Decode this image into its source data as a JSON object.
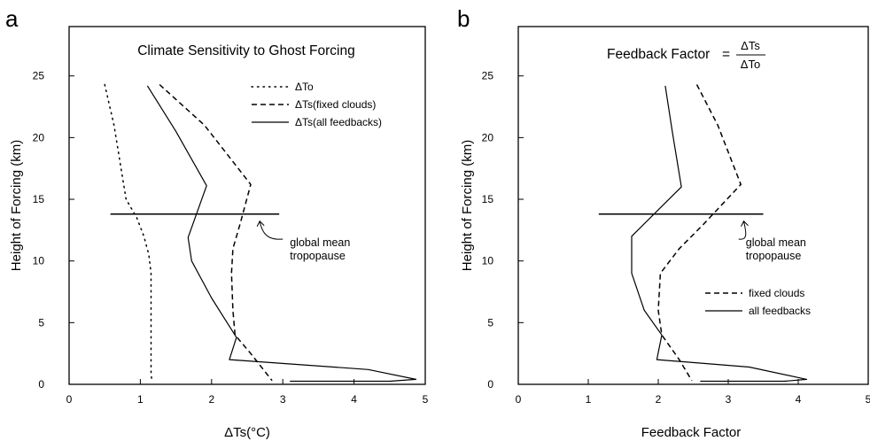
{
  "chart_data": [
    {
      "panel_label": "a",
      "type": "line",
      "title": "Climate Sensitivity to Ghost Forcing",
      "xlabel": "ΔTs(°C)",
      "ylabel": "Height of Forcing (km)",
      "xlim": [
        0,
        5
      ],
      "ylim": [
        0,
        29
      ],
      "xticks": [
        0,
        1,
        2,
        3,
        4,
        5
      ],
      "yticks": [
        0,
        5,
        10,
        15,
        20,
        25
      ],
      "grid": false,
      "legend_position": "top-right",
      "series": [
        {
          "name": "ΔTo",
          "style": "dotted",
          "points": [
            [
              0.5,
              24.3
            ],
            [
              0.63,
              21.0
            ],
            [
              0.8,
              15.0
            ],
            [
              0.95,
              13.5
            ],
            [
              1.05,
              12.0
            ],
            [
              1.12,
              10.5
            ],
            [
              1.15,
              9.0
            ],
            [
              1.15,
              7.0
            ],
            [
              1.15,
              5.0
            ],
            [
              1.15,
              3.0
            ],
            [
              1.15,
              1.0
            ],
            [
              1.16,
              0.3
            ]
          ]
        },
        {
          "name": "ΔTs(fixed clouds)",
          "style": "dashed",
          "points": [
            [
              1.27,
              24.3
            ],
            [
              1.9,
              21.0
            ],
            [
              2.55,
              16.2
            ],
            [
              2.4,
              13.0
            ],
            [
              2.3,
              11.0
            ],
            [
              2.28,
              9.0
            ],
            [
              2.3,
              6.0
            ],
            [
              2.33,
              4.0
            ],
            [
              2.55,
              2.5
            ],
            [
              2.85,
              0.3
            ]
          ]
        },
        {
          "name": "ΔTs(all feedbacks)",
          "style": "solid",
          "points": [
            [
              1.1,
              24.2
            ],
            [
              1.5,
              20.5
            ],
            [
              1.93,
              16.1
            ],
            [
              1.67,
              11.9
            ],
            [
              1.72,
              10.0
            ],
            [
              2.0,
              7.0
            ],
            [
              2.35,
              3.8
            ],
            [
              2.25,
              2.0
            ],
            [
              4.2,
              1.2
            ],
            [
              4.87,
              0.4
            ],
            [
              4.5,
              0.25
            ],
            [
              3.1,
              0.25
            ]
          ]
        }
      ],
      "annotation": {
        "line1": "global mean",
        "line2": "tropopause",
        "height": 13.8,
        "x_start": 0.58,
        "x_end": 2.95,
        "text_x": 3.1,
        "text_y": 11.2
      }
    },
    {
      "panel_label": "b",
      "type": "line",
      "title_text": "Feedback Factor",
      "title_eq": "=",
      "title_num": "ΔTs",
      "title_den": "ΔTo",
      "xlabel": "Feedback Factor",
      "ylabel": "Height of Forcing (km)",
      "xlim": [
        0,
        5
      ],
      "ylim": [
        0,
        29
      ],
      "xticks": [
        0,
        1,
        2,
        3,
        4,
        5
      ],
      "yticks": [
        0,
        5,
        10,
        15,
        20,
        25
      ],
      "grid": false,
      "legend_position": "middle-right",
      "series": [
        {
          "name": "fixed clouds",
          "style": "dashed",
          "points": [
            [
              2.55,
              24.3
            ],
            [
              2.85,
              21.0
            ],
            [
              3.18,
              16.2
            ],
            [
              2.65,
              13.0
            ],
            [
              2.3,
              11.0
            ],
            [
              2.03,
              9.0
            ],
            [
              2.0,
              6.0
            ],
            [
              2.05,
              4.0
            ],
            [
              2.3,
              2.0
            ],
            [
              2.48,
              0.3
            ]
          ]
        },
        {
          "name": "all feedbacks",
          "style": "solid",
          "points": [
            [
              2.1,
              24.2
            ],
            [
              2.2,
              20.5
            ],
            [
              2.33,
              16.0
            ],
            [
              1.62,
              12.0
            ],
            [
              1.62,
              9.0
            ],
            [
              1.8,
              6.0
            ],
            [
              2.05,
              4.0
            ],
            [
              1.98,
              2.0
            ],
            [
              3.3,
              1.4
            ],
            [
              4.12,
              0.4
            ],
            [
              3.8,
              0.25
            ],
            [
              2.6,
              0.25
            ]
          ]
        }
      ],
      "annotation": {
        "line1": "global mean",
        "line2": "tropopause",
        "height": 13.8,
        "x_start": 1.15,
        "x_end": 3.5,
        "text_x": 3.25,
        "text_y": 11.2
      }
    }
  ]
}
